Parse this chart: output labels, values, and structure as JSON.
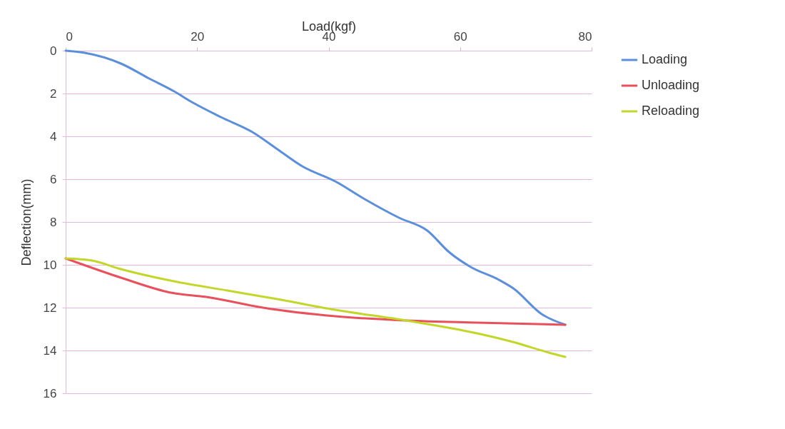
{
  "chart_data": {
    "type": "line",
    "xlabel": "Load(kgf)",
    "ylabel": "Deflection(mm)",
    "xlim": [
      0,
      80
    ],
    "xticks": [
      0,
      20,
      40,
      60,
      80
    ],
    "ylim": [
      16,
      0
    ],
    "yticks": [
      0,
      2,
      4,
      6,
      8,
      10,
      12,
      14,
      16
    ],
    "grid": "y",
    "legend": "right",
    "series": [
      {
        "name": "Loading",
        "color": "#5b8fdc",
        "x": [
          0,
          2.9,
          8.4,
          12.7,
          16.5,
          19.2,
          23.6,
          28.4,
          32.2,
          36,
          41,
          45.3,
          50.7,
          55,
          58.3,
          61.6,
          65.9,
          68.1,
          72.4,
          76
        ],
        "values": [
          0,
          0.1,
          0.6,
          1.3,
          1.9,
          2.4,
          3.1,
          3.8,
          4.6,
          5.4,
          6.1,
          6.9,
          7.8,
          8.4,
          9.4,
          10.1,
          10.7,
          11.1,
          12.3,
          12.8
        ]
      },
      {
        "name": "Unloading",
        "color": "#e8505b",
        "x": [
          0,
          8.4,
          16,
          21.4,
          30,
          41,
          51.8,
          62.6,
          76
        ],
        "values": [
          9.7,
          10.6,
          11.3,
          11.5,
          12,
          12.4,
          12.6,
          12.7,
          12.8
        ]
      },
      {
        "name": "Reloading",
        "color": "#c3d62a",
        "x": [
          0,
          4,
          8.4,
          17,
          24.6,
          32.2,
          41,
          51.8,
          62.6,
          68,
          73.5,
          76
        ],
        "values": [
          9.7,
          9.8,
          10.2,
          10.8,
          11.2,
          11.6,
          12.1,
          12.6,
          13.2,
          13.6,
          14.1,
          14.3
        ]
      }
    ]
  }
}
